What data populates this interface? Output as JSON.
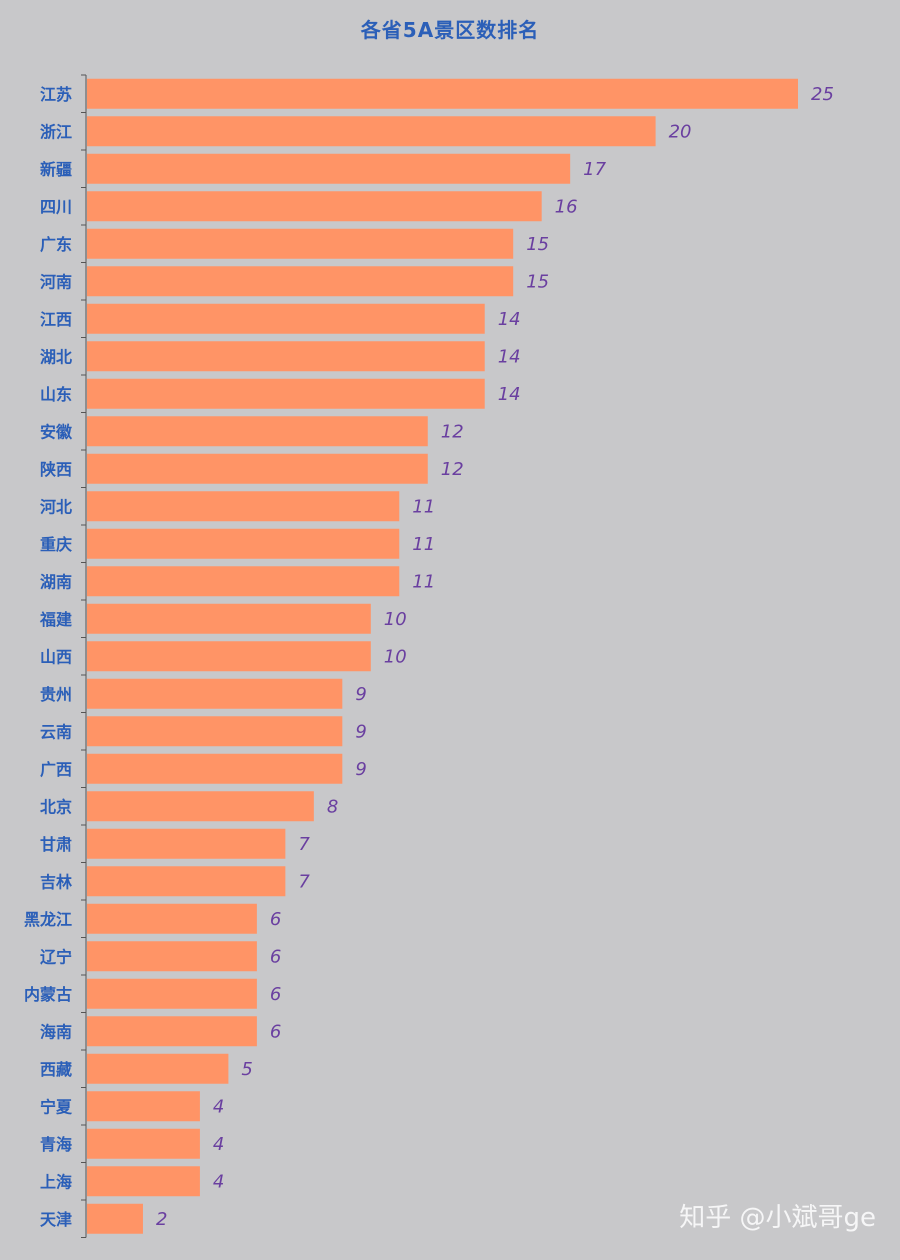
{
  "chart_data": {
    "type": "bar",
    "orientation": "horizontal",
    "title": "各省5A景区数排名",
    "categories": [
      "江苏",
      "浙江",
      "新疆",
      "四川",
      "广东",
      "河南",
      "江西",
      "湖北",
      "山东",
      "安徽",
      "陕西",
      "河北",
      "重庆",
      "湖南",
      "福建",
      "山西",
      "贵州",
      "云南",
      "广西",
      "北京",
      "甘肃",
      "吉林",
      "黑龙江",
      "辽宁",
      "内蒙古",
      "海南",
      "西藏",
      "宁夏",
      "青海",
      "上海",
      "天津"
    ],
    "values": [
      25,
      20,
      17,
      16,
      15,
      15,
      14,
      14,
      14,
      12,
      12,
      11,
      11,
      11,
      10,
      10,
      9,
      9,
      9,
      8,
      7,
      7,
      6,
      6,
      6,
      6,
      5,
      4,
      4,
      4,
      2
    ],
    "xlim": [
      0,
      25
    ],
    "bar_color": "#ff9466",
    "label_color": "#2b5fb8",
    "value_color": "#6a3fa0",
    "grid": false,
    "legend": "none"
  },
  "watermark": "知乎 @小斌哥ge"
}
